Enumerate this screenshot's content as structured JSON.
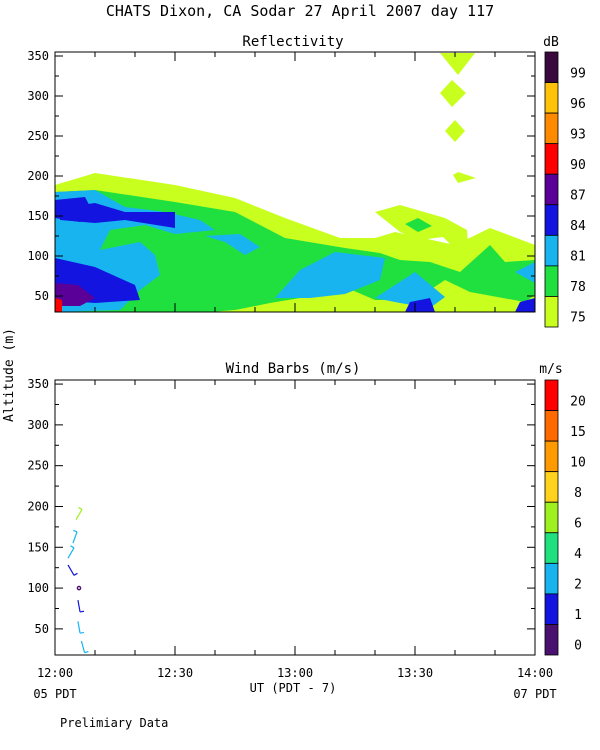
{
  "page": {
    "title": "CHATS Dixon, CA  Sodar  27 April 2007  day 117",
    "footnote": "Prelimiary Data",
    "ylabel": "Altitude (m)",
    "xlabel": "UT  (PDT - 7)",
    "x_ticks": [
      "12:00",
      "12:30",
      "13:00",
      "13:30",
      "14:00"
    ],
    "x_start_local": "05 PDT",
    "x_end_local": "07 PDT"
  },
  "chart_data": [
    {
      "type": "heatmap",
      "title": "Reflectivity",
      "colorbar_unit": "dB",
      "y_ticks": [
        50,
        100,
        150,
        200,
        250,
        300,
        350
      ],
      "ylim": [
        30,
        355
      ],
      "xlim": [
        "12:00",
        "14:00"
      ],
      "levels": [
        {
          "value": "99",
          "color": "#3a0a3e"
        },
        {
          "value": "96",
          "color": "#ffc20a"
        },
        {
          "value": "93",
          "color": "#ff8a00"
        },
        {
          "value": "90",
          "color": "#ff0000"
        },
        {
          "value": "87",
          "color": "#5a0099"
        },
        {
          "value": "84",
          "color": "#1414e0"
        },
        {
          "value": "81",
          "color": "#18b4f0"
        },
        {
          "value": "78",
          "color": "#20e040"
        },
        {
          "value": "75",
          "color": "#c8ff1e"
        }
      ]
    },
    {
      "type": "scatter",
      "title": "Wind Barbs (m/s)",
      "colorbar_unit": "m/s",
      "y_ticks": [
        50,
        100,
        150,
        200,
        250,
        300,
        350
      ],
      "ylim": [
        18,
        355
      ],
      "xlim": [
        "12:00",
        "14:00"
      ],
      "levels": [
        {
          "value": "20",
          "color": "#ff0000"
        },
        {
          "value": "15",
          "color": "#ff6a00"
        },
        {
          "value": "10",
          "color": "#ff9a00"
        },
        {
          "value": "8",
          "color": "#ffd21e"
        },
        {
          "value": "6",
          "color": "#9ef01e"
        },
        {
          "value": "4",
          "color": "#20e080"
        },
        {
          "value": "2",
          "color": "#18b4f0"
        },
        {
          "value": "1",
          "color": "#1414e0"
        },
        {
          "value": "0",
          "color": "#4a1070"
        }
      ],
      "barbs": [
        {
          "time": "12:06",
          "altitude": 190,
          "speed_level": "6",
          "direction_deg": 30
        },
        {
          "time": "12:05",
          "altitude": 162,
          "speed_level": "2",
          "direction_deg": 20
        },
        {
          "time": "12:04",
          "altitude": 143,
          "speed_level": "2",
          "direction_deg": 30
        },
        {
          "time": "12:04",
          "altitude": 122,
          "speed_level": "1",
          "direction_deg": 150
        },
        {
          "time": "12:06",
          "altitude": 100,
          "speed_level": "0",
          "direction_deg": 0
        },
        {
          "time": "12:06",
          "altitude": 78,
          "speed_level": "1",
          "direction_deg": 170
        },
        {
          "time": "12:06",
          "altitude": 52,
          "speed_level": "2",
          "direction_deg": 170
        },
        {
          "time": "12:07",
          "altitude": 28,
          "speed_level": "2",
          "direction_deg": 165
        }
      ]
    }
  ]
}
